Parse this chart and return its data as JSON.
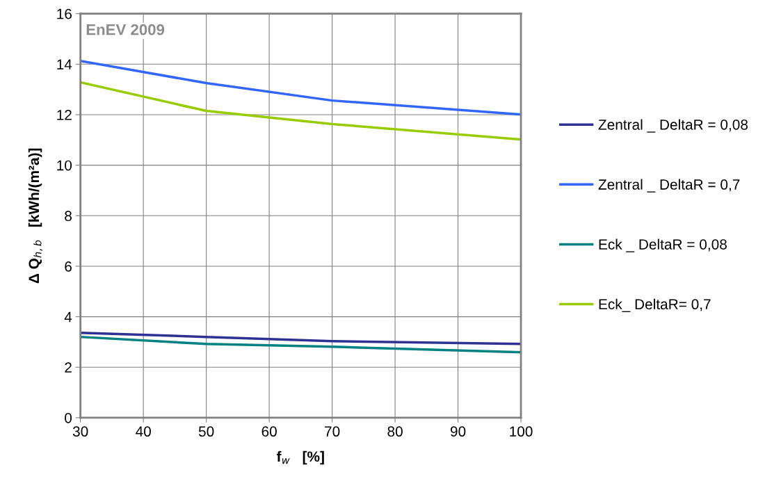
{
  "chart_data": {
    "type": "line",
    "xlabel": "f$_{w}$   [%]",
    "ylabel": "Δ Q$_{h,b}$   [kWh/(m²a)]",
    "annotations": [
      "EnEV 2009"
    ],
    "x": [
      30,
      50,
      70,
      100
    ],
    "series": [
      {
        "name": "Zentral _ DeltaR = 0,08",
        "color": "#2e3192",
        "values": [
          3.36,
          3.2,
          3.03,
          2.92
        ]
      },
      {
        "name": "Zentral _ DeltaR = 0,7",
        "color": "#3366ff",
        "values": [
          14.13,
          13.25,
          12.56,
          12.01
        ]
      },
      {
        "name": "Eck _ DeltaR = 0,08",
        "color": "#008080",
        "values": [
          3.2,
          2.92,
          2.81,
          2.59
        ]
      },
      {
        "name": "Eck_ DeltaR= 0,7",
        "color": "#99cc00",
        "values": [
          13.28,
          12.15,
          11.63,
          11.02
        ]
      }
    ],
    "xlim": [
      30,
      100
    ],
    "xticks": [
      30,
      40,
      50,
      60,
      70,
      80,
      90,
      100
    ],
    "ylim": [
      0,
      16
    ],
    "yticks": [
      0,
      2,
      4,
      6,
      8,
      10,
      12,
      14,
      16
    ],
    "grid": true,
    "legend": "right",
    "marker": "none",
    "line_style": "solid"
  }
}
